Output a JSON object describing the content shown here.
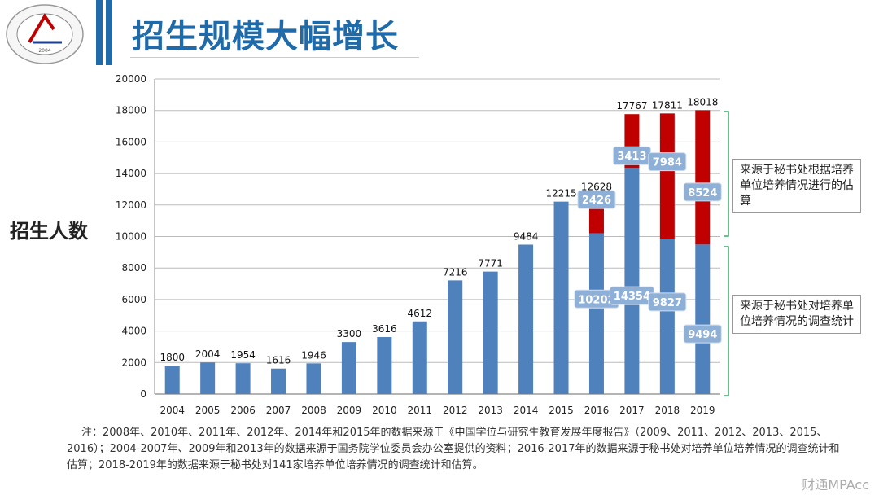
{
  "title": "招生规模大幅增长",
  "logo_text": "2004",
  "watermark": "财通MPAcc",
  "chart_data": {
    "type": "bar",
    "stacked": true,
    "ylabel": "招生人数",
    "ylim": [
      0,
      20000
    ],
    "yticks": [
      0,
      2000,
      4000,
      6000,
      8000,
      10000,
      12000,
      14000,
      16000,
      18000,
      20000
    ],
    "grid": true,
    "categories": [
      "2004",
      "2005",
      "2006",
      "2007",
      "2008",
      "2009",
      "2010",
      "2011",
      "2012",
      "2013",
      "2014",
      "2015",
      "2016",
      "2017",
      "2018",
      "2019"
    ],
    "series": [
      {
        "color": "#4f81bd",
        "values": [
          1800,
          2004,
          1954,
          1616,
          1946,
          3300,
          3616,
          4612,
          7216,
          7771,
          9484,
          12215,
          10202,
          14354,
          9827,
          9494
        ]
      },
      {
        "color": "#c00000",
        "values": [
          0,
          0,
          0,
          0,
          0,
          0,
          0,
          0,
          0,
          0,
          0,
          0,
          2426,
          3413,
          7984,
          8524
        ]
      }
    ],
    "totals": [
      1800,
      2004,
      1954,
      1616,
      1946,
      3300,
      3616,
      4612,
      7216,
      7771,
      9484,
      12215,
      12628,
      17767,
      17811,
      18018
    ],
    "annotations": [
      "来源于秘书处根据培养单位培养情况进行的估算",
      "来源于秘书处对培养单位培养情况的调查统计"
    ]
  },
  "note": "注：2008年、2010年、2011年、2012年、2014年和2015年的数据来源于《中国学位与研究生教育发展年度报告》（2009、2011、2012、2013、2015、2016）；2004-2007年、2009年和2013年的数据来源于国务院学位委员会办公室提供的资料；2016-2017年的数据来源于秘书处对培养单位培养情况的调查统计和估算；2018-2019年的数据来源于秘书处对141家培养单位培养情况的调查统计和估算。"
}
